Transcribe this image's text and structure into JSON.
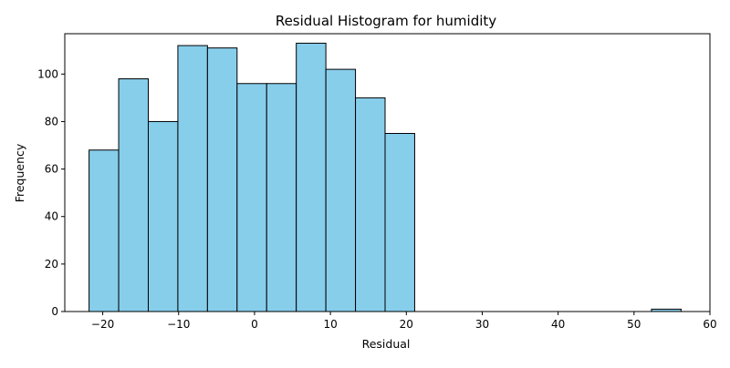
{
  "chart_data": {
    "type": "bar",
    "title": "Residual Histogram for humidity",
    "xlabel": "Residual",
    "ylabel": "Frequency",
    "xlim": [
      -25,
      60
    ],
    "ylim": [
      0,
      117
    ],
    "xticks": [
      -20,
      -10,
      0,
      10,
      20,
      30,
      40,
      50,
      60
    ],
    "yticks": [
      0,
      20,
      40,
      60,
      80,
      100
    ],
    "bins": [
      {
        "start": -21.8,
        "end": -17.9,
        "count": 68
      },
      {
        "start": -17.9,
        "end": -14.0,
        "count": 98
      },
      {
        "start": -14.0,
        "end": -10.1,
        "count": 80
      },
      {
        "start": -10.1,
        "end": -6.2,
        "count": 112
      },
      {
        "start": -6.2,
        "end": -2.3,
        "count": 111
      },
      {
        "start": -2.3,
        "end": 1.6,
        "count": 96
      },
      {
        "start": 1.6,
        "end": 5.5,
        "count": 96
      },
      {
        "start": 5.5,
        "end": 9.4,
        "count": 113
      },
      {
        "start": 9.4,
        "end": 13.3,
        "count": 102
      },
      {
        "start": 13.3,
        "end": 17.2,
        "count": 90
      },
      {
        "start": 17.2,
        "end": 21.1,
        "count": 75
      },
      {
        "start": 21.1,
        "end": 25.0,
        "count": 0
      },
      {
        "start": 25.0,
        "end": 28.9,
        "count": 0
      },
      {
        "start": 28.9,
        "end": 32.8,
        "count": 0
      },
      {
        "start": 32.8,
        "end": 36.7,
        "count": 0
      },
      {
        "start": 36.7,
        "end": 40.6,
        "count": 0
      },
      {
        "start": 40.6,
        "end": 44.5,
        "count": 0
      },
      {
        "start": 44.5,
        "end": 48.4,
        "count": 0
      },
      {
        "start": 48.4,
        "end": 52.3,
        "count": 0
      },
      {
        "start": 52.3,
        "end": 56.2,
        "count": 1
      }
    ],
    "bar_color": "#87ceeb",
    "edge_color": "#000000",
    "grid": false,
    "legend": "none"
  }
}
